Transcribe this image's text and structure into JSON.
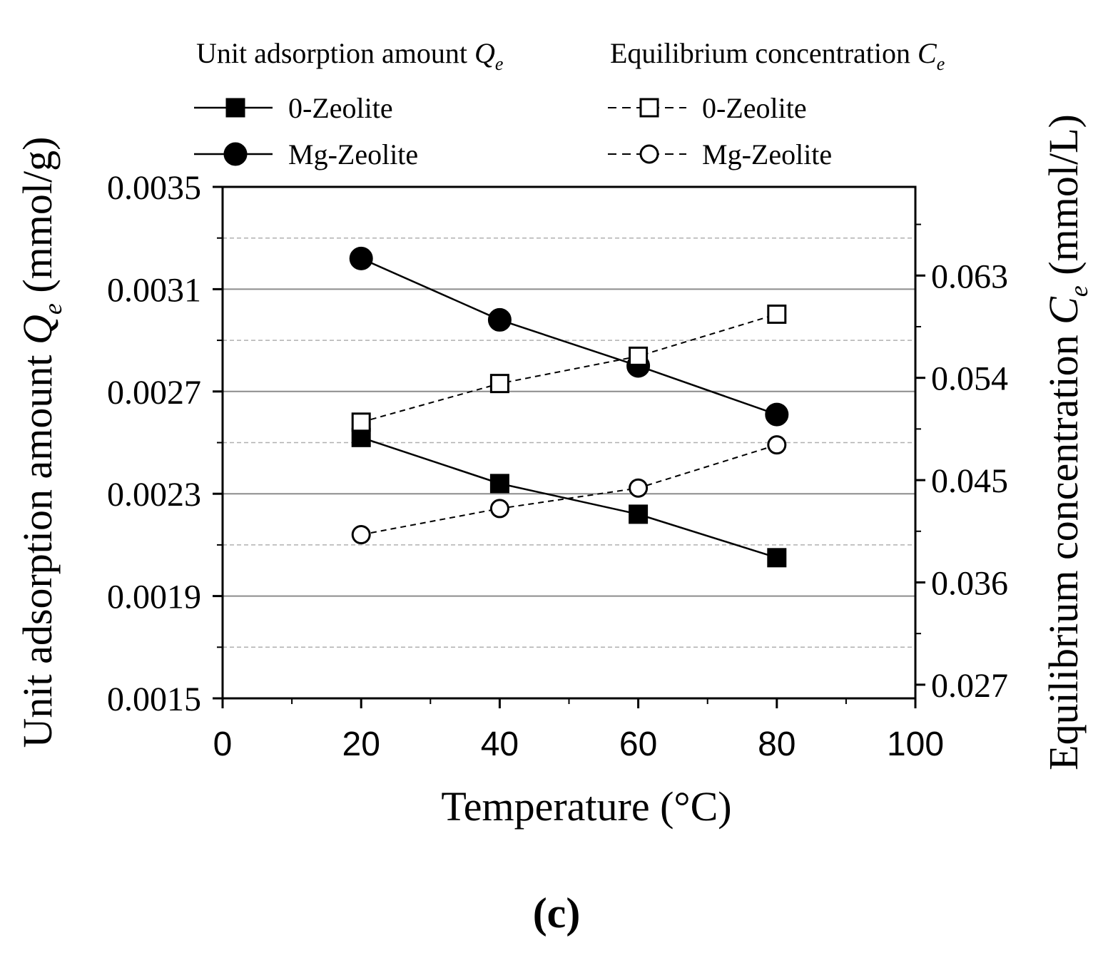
{
  "chart_data": {
    "type": "line",
    "panel_label": "(c)",
    "xlabel": "Temperature (°C)",
    "ylabel_left": {
      "text": "Unit adsorption amount ",
      "symbol": "Q",
      "sub": "e",
      "unit": " (mmol/g)"
    },
    "ylabel_right": {
      "text": "Equilibrium concentration ",
      "symbol": "C",
      "sub": "e",
      "unit": " (mmol/L)"
    },
    "legend_groups": [
      {
        "title": {
          "text": "Unit adsorption amount ",
          "symbol": "Q",
          "sub": "e"
        }
      },
      {
        "title": {
          "text": "Equilibrium concentration ",
          "symbol": "C",
          "sub": "e"
        }
      }
    ],
    "xlim": [
      0,
      100
    ],
    "x_ticks": [
      "0",
      "20",
      "40",
      "60",
      "80",
      "100"
    ],
    "ylim_left": [
      0.0015,
      0.0035
    ],
    "y_ticks_left": [
      "0.0015",
      "0.0019",
      "0.0023",
      "0.0027",
      "0.0031",
      "0.0035"
    ],
    "ylim_right": [
      0.0258,
      0.0708
    ],
    "y_ticks_right": [
      "0.027",
      "0.036",
      "0.045",
      "0.054",
      "0.063"
    ],
    "grid": true,
    "legend_position": "top",
    "series": [
      {
        "name": "0-Zeolite",
        "axis": "left",
        "line": "solid",
        "marker": "square-filled",
        "x": [
          20,
          40,
          60,
          80
        ],
        "y": [
          0.00252,
          0.00234,
          0.00222,
          0.00205
        ]
      },
      {
        "name": "Mg-Zeolite",
        "axis": "left",
        "line": "solid",
        "marker": "circle-filled",
        "x": [
          20,
          40,
          60,
          80
        ],
        "y": [
          0.00322,
          0.00298,
          0.0028,
          0.00261
        ]
      },
      {
        "name": "0-Zeolite",
        "axis": "right",
        "line": "dashed",
        "marker": "square-open",
        "x": [
          20,
          40,
          60,
          80
        ],
        "y": [
          0.0501,
          0.0535,
          0.0559,
          0.0596
        ]
      },
      {
        "name": "Mg-Zeolite",
        "axis": "right",
        "line": "dashed",
        "marker": "circle-open",
        "x": [
          20,
          40,
          60,
          80
        ],
        "y": [
          0.0402,
          0.0425,
          0.0443,
          0.0481
        ]
      }
    ]
  }
}
